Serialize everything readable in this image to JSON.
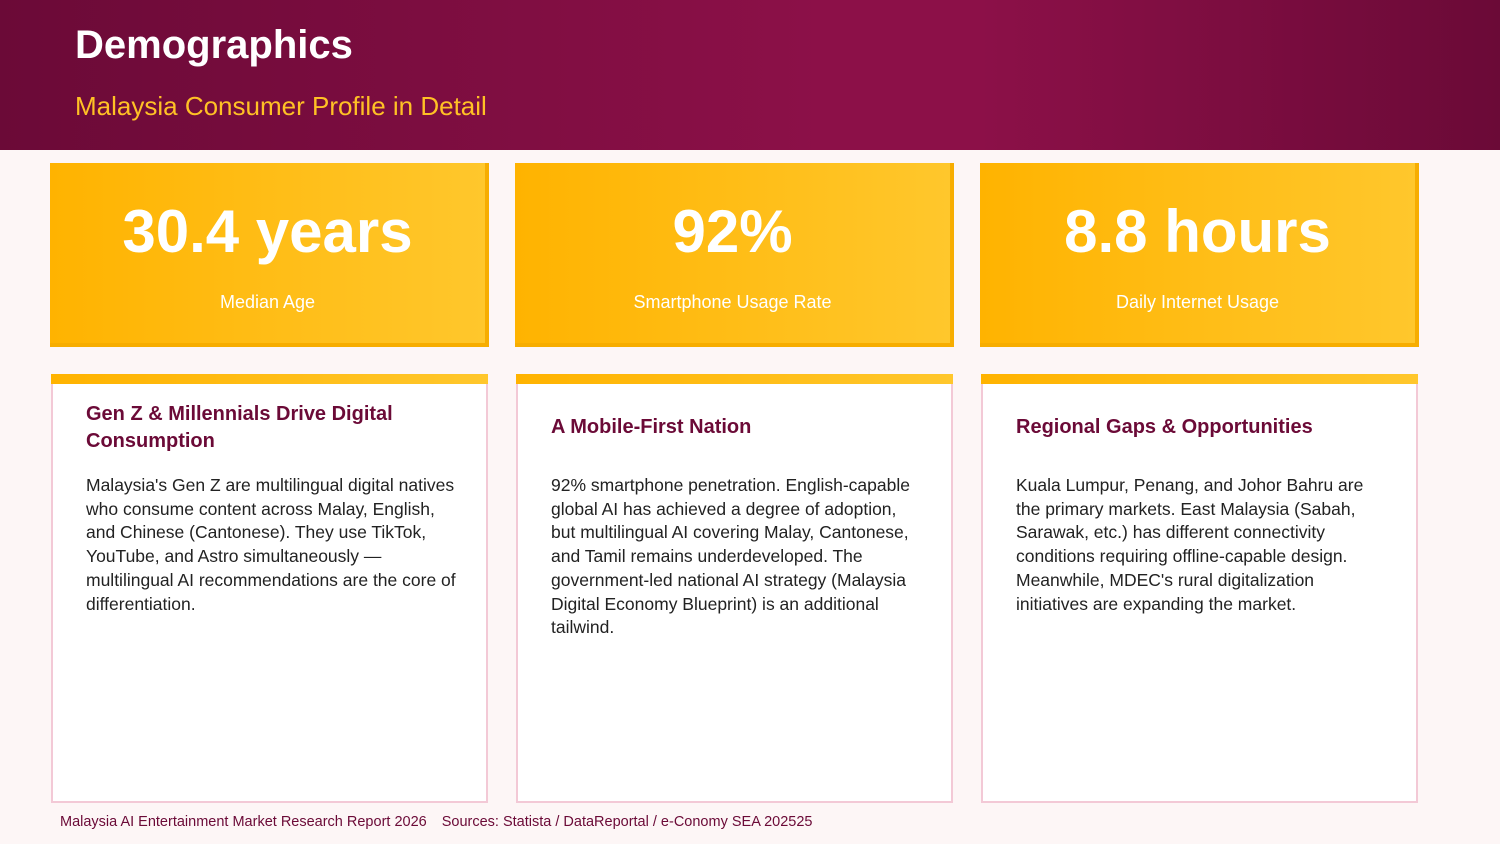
{
  "header": {
    "title": "Demographics",
    "subtitle": "Malaysia Consumer Profile in Detail"
  },
  "stats": [
    {
      "value": "30.4 years",
      "label": "Median Age"
    },
    {
      "value": "92%",
      "label": "Smartphone Usage Rate"
    },
    {
      "value": "8.8 hours",
      "label": "Daily Internet Usage"
    }
  ],
  "cards": [
    {
      "title": "Gen Z & Millennials Drive Digital Consumption",
      "body": "Malaysia's Gen Z are multilingual digital natives who consume content across Malay, English, and Chinese (Cantonese). They use TikTok, YouTube, and Astro simultaneously — multilingual AI recommendations are the core of differentiation."
    },
    {
      "title": "A Mobile-First Nation",
      "body": "92% smartphone penetration. English-capable global AI has achieved a degree of adoption, but multilingual AI covering Malay, Cantonese, and Tamil remains underdeveloped. The government-led national AI strategy (Malaysia Digital Economy Blueprint) is an additional tailwind."
    },
    {
      "title": "Regional Gaps & Opportunities",
      "body": "Kuala Lumpur, Penang, and Johor Bahru are the primary markets. East Malaysia (Sabah, Sarawak, etc.) has different connectivity conditions requiring offline-capable design. Meanwhile, MDEC's rural digitalization initiatives are expanding the market."
    }
  ],
  "footer": {
    "report": "Malaysia AI Entertainment Market Research Report 2026",
    "sources": "Sources: Statista / DataReportal / e-Conomy SEA 202525"
  },
  "colors": {
    "header_dark": "#6b0a37",
    "header_light": "#8c1048",
    "accent_gold": "#ffc125",
    "card_border": "#f3c9d6"
  }
}
